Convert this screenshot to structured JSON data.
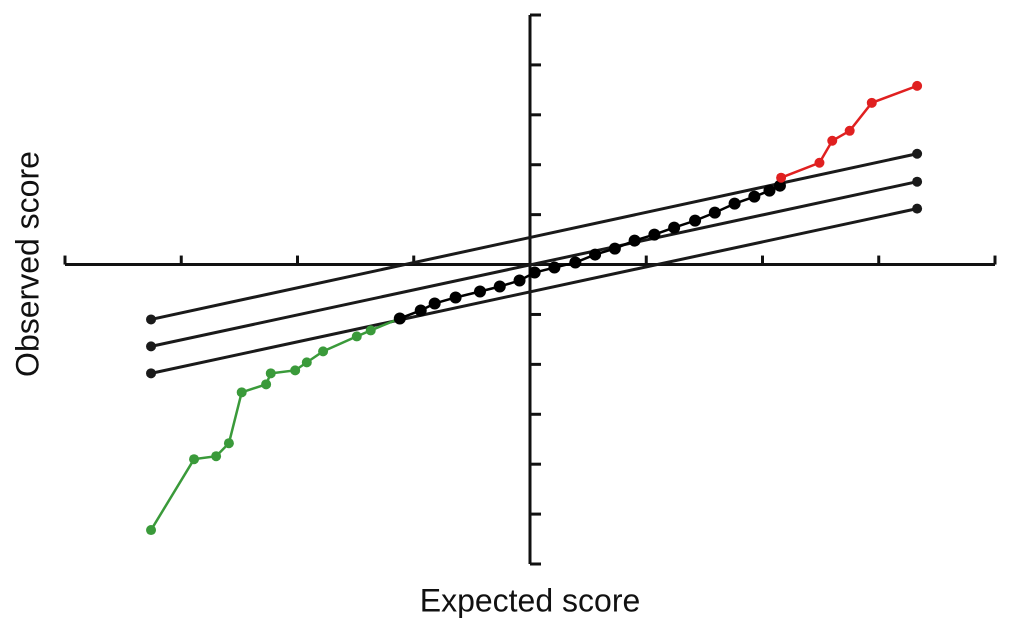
{
  "chart_data": {
    "type": "line",
    "x_label": "Expected score",
    "y_label": "Observed score",
    "xlim": [
      -4,
      4
    ],
    "ylim": [
      -6,
      5
    ],
    "xticks": [
      -4,
      -3,
      -2,
      -1,
      0,
      1,
      2,
      3,
      4
    ],
    "yticks": [
      -6,
      -5,
      -4,
      -3,
      -2,
      -1,
      0,
      1,
      2,
      3,
      4,
      5
    ],
    "series": [
      {
        "color": "#1a1a1a",
        "markers": true,
        "x": [
          -3.26,
          3.33
        ],
        "values": [
          -1.1,
          2.22
        ]
      },
      {
        "color": "#1a1a1a",
        "markers": true,
        "x": [
          -3.26,
          3.33
        ],
        "values": [
          -1.64,
          1.66
        ]
      },
      {
        "color": "#1a1a1a",
        "markers": true,
        "x": [
          -3.26,
          3.33
        ],
        "values": [
          -2.18,
          1.12
        ]
      },
      {
        "color": "#3a9a3a",
        "markers": true,
        "x": [
          -3.26,
          -2.89,
          -2.7,
          -2.59,
          -2.48,
          -2.27,
          -2.23,
          -2.02,
          -1.92,
          -1.78,
          -1.49,
          -1.37,
          -1.12
        ],
        "values": [
          -5.32,
          -3.9,
          -3.84,
          -3.58,
          -2.56,
          -2.4,
          -2.18,
          -2.12,
          -1.96,
          -1.74,
          -1.44,
          -1.32,
          -1.08
        ]
      },
      {
        "color": "#000000",
        "markers": true,
        "x": [
          -1.12,
          -0.94,
          -0.82,
          -0.64,
          -0.43,
          -0.26,
          -0.09,
          0.04,
          0.21,
          0.39,
          0.56,
          0.73,
          0.9,
          1.07,
          1.24,
          1.42,
          1.59,
          1.76,
          1.93,
          2.06,
          2.15
        ],
        "values": [
          -1.08,
          -0.92,
          -0.78,
          -0.66,
          -0.54,
          -0.44,
          -0.32,
          -0.16,
          -0.06,
          0.04,
          0.2,
          0.32,
          0.48,
          0.6,
          0.74,
          0.88,
          1.04,
          1.22,
          1.36,
          1.48,
          1.58
        ]
      },
      {
        "color": "#e02020",
        "markers": true,
        "x": [
          2.16,
          2.49,
          2.6,
          2.75,
          2.94,
          3.33
        ],
        "values": [
          1.74,
          2.04,
          2.48,
          2.68,
          3.24,
          3.58
        ]
      }
    ]
  }
}
